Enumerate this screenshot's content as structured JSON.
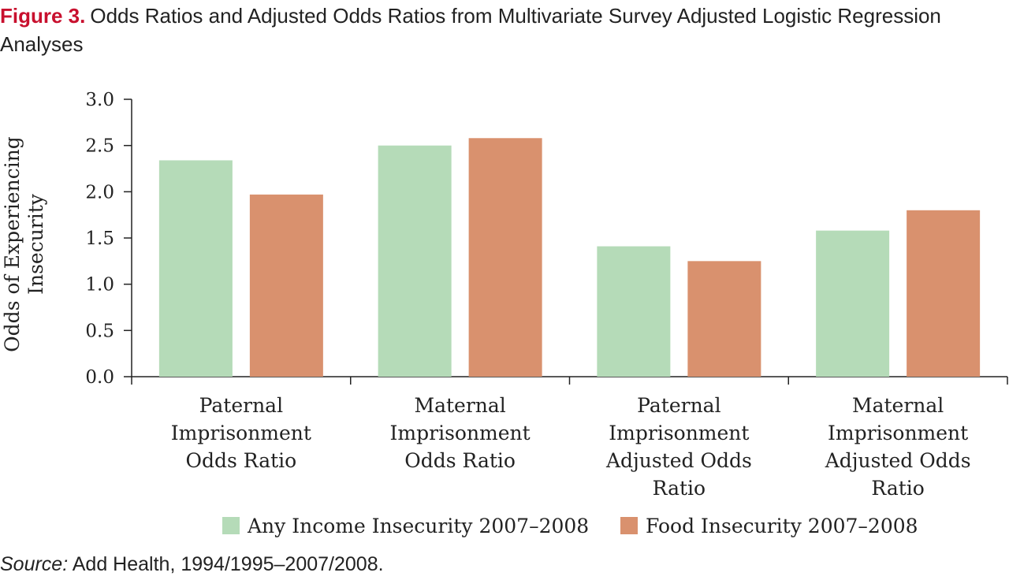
{
  "figure": {
    "label": "Figure 3.",
    "title": "Odds Ratios and Adjusted Odds Ratios from Multivariate Survey Adjusted Logistic Regression Analyses"
  },
  "source": {
    "label": "Source:",
    "text": "Add Health, 1994/1995–2007/2008."
  },
  "chart_data": {
    "type": "bar",
    "categories": [
      [
        "Paternal",
        "Imprisonment",
        "Odds Ratio"
      ],
      [
        "Maternal",
        "Imprisonment",
        "Odds Ratio"
      ],
      [
        "Paternal",
        "Imprisonment",
        "Adjusted Odds",
        "Ratio"
      ],
      [
        "Maternal",
        "Imprisonment",
        "Adjusted Odds",
        "Ratio"
      ]
    ],
    "series": [
      {
        "name": "Any Income Insecurity 2007–2008",
        "color": "#b5dbb8",
        "values": [
          2.34,
          2.5,
          1.41,
          1.58
        ]
      },
      {
        "name": "Food Insecurity 2007–2008",
        "color": "#d9916e",
        "values": [
          1.97,
          2.58,
          1.25,
          1.8
        ]
      }
    ],
    "ylabel": [
      "Odds of Experiencing",
      "Insecurity"
    ],
    "ylim": [
      0,
      3.0
    ],
    "yticks": [
      "0.0",
      "0.5",
      "1.0",
      "1.5",
      "2.0",
      "2.5",
      "3.0"
    ],
    "legend_position": "bottom",
    "grid": false
  }
}
